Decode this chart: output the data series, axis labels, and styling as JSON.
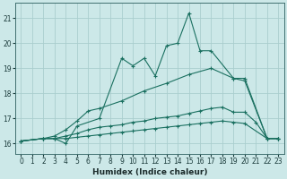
{
  "xlabel": "Humidex (Indice chaleur)",
  "ylabel": "",
  "xlim": [
    -0.5,
    23.5
  ],
  "ylim": [
    15.6,
    21.6
  ],
  "yticks": [
    16,
    17,
    18,
    19,
    20,
    21
  ],
  "xticks": [
    0,
    1,
    2,
    3,
    4,
    5,
    6,
    7,
    8,
    9,
    10,
    11,
    12,
    13,
    14,
    15,
    16,
    17,
    18,
    19,
    20,
    21,
    22,
    23
  ],
  "bg_color": "#cce8e8",
  "grid_color": "#aacece",
  "line_color": "#1a7060",
  "series": [
    {
      "x": [
        0,
        2,
        3,
        4,
        5,
        7,
        9,
        10,
        11,
        12,
        13,
        14,
        15,
        16,
        17,
        19,
        20,
        22,
        23
      ],
      "y": [
        16.1,
        16.2,
        16.2,
        16.0,
        16.7,
        17.0,
        19.4,
        19.1,
        19.4,
        18.7,
        19.9,
        20.0,
        21.2,
        19.7,
        19.7,
        18.6,
        18.6,
        16.2,
        16.2
      ]
    },
    {
      "x": [
        0,
        2,
        3,
        4,
        5,
        6,
        7,
        9,
        11,
        13,
        15,
        17,
        19,
        20,
        22,
        23
      ],
      "y": [
        16.1,
        16.2,
        16.3,
        16.55,
        16.9,
        17.3,
        17.4,
        17.7,
        18.1,
        18.4,
        18.75,
        19.0,
        18.6,
        18.5,
        16.2,
        16.2
      ]
    },
    {
      "x": [
        0,
        2,
        3,
        4,
        5,
        6,
        7,
        8,
        9,
        10,
        11,
        12,
        13,
        14,
        15,
        16,
        17,
        18,
        19,
        20,
        21,
        22,
        23
      ],
      "y": [
        16.1,
        16.2,
        16.2,
        16.3,
        16.4,
        16.55,
        16.65,
        16.7,
        16.75,
        16.85,
        16.9,
        17.0,
        17.05,
        17.1,
        17.2,
        17.3,
        17.4,
        17.45,
        17.25,
        17.25,
        16.85,
        16.2,
        16.2
      ]
    },
    {
      "x": [
        0,
        2,
        3,
        4,
        5,
        6,
        7,
        8,
        9,
        10,
        11,
        12,
        13,
        14,
        15,
        16,
        17,
        18,
        19,
        20,
        22,
        23
      ],
      "y": [
        16.1,
        16.2,
        16.2,
        16.2,
        16.25,
        16.3,
        16.35,
        16.4,
        16.45,
        16.5,
        16.55,
        16.6,
        16.65,
        16.7,
        16.75,
        16.8,
        16.85,
        16.9,
        16.85,
        16.8,
        16.2,
        16.2
      ]
    }
  ]
}
